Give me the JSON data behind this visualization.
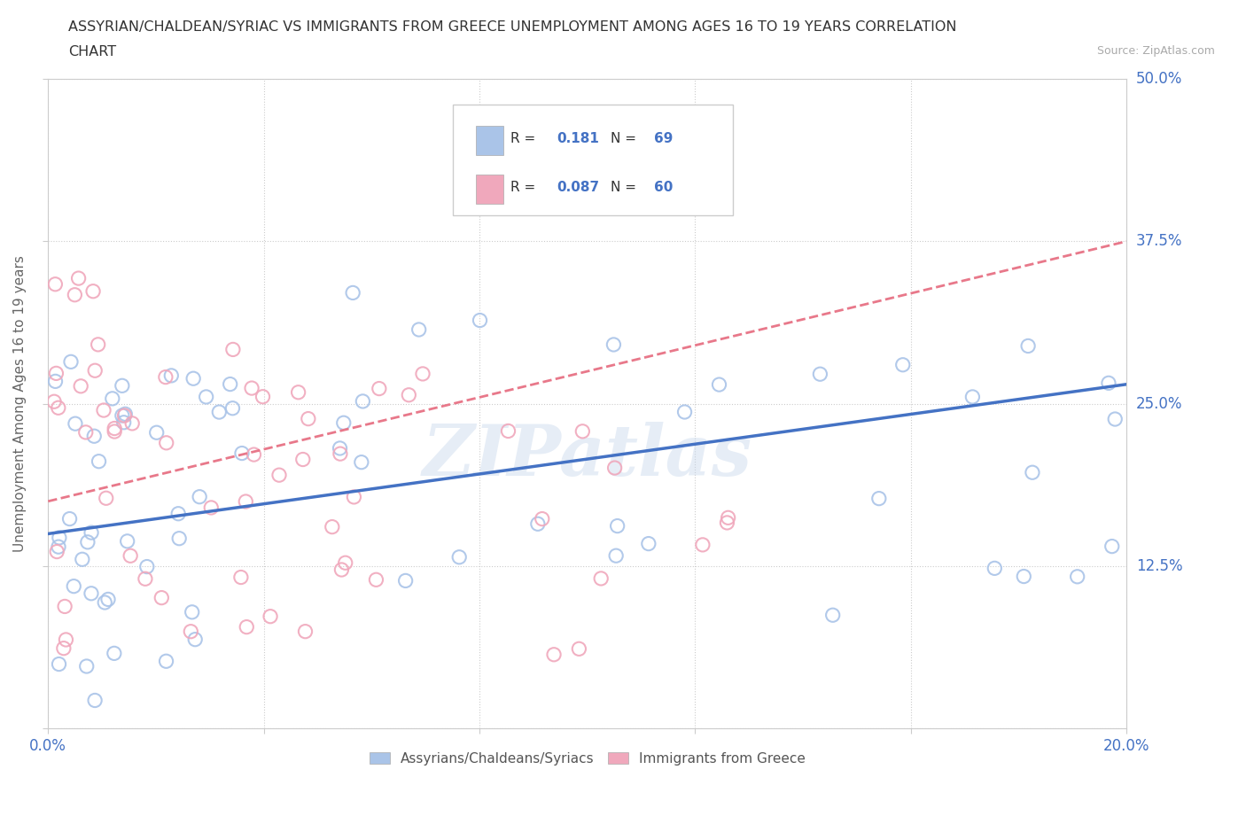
{
  "title_line1": "ASSYRIAN/CHALDEAN/SYRIAC VS IMMIGRANTS FROM GREECE UNEMPLOYMENT AMONG AGES 16 TO 19 YEARS CORRELATION",
  "title_line2": "CHART",
  "source_text": "Source: ZipAtlas.com",
  "ylabel": "Unemployment Among Ages 16 to 19 years",
  "xlim": [
    0.0,
    0.2
  ],
  "ylim": [
    0.0,
    0.5
  ],
  "xticks": [
    0.0,
    0.04,
    0.08,
    0.12,
    0.16,
    0.2
  ],
  "yticks": [
    0.0,
    0.125,
    0.25,
    0.375,
    0.5
  ],
  "blue_R": 0.181,
  "blue_N": 69,
  "pink_R": 0.087,
  "pink_N": 60,
  "blue_color": "#aac4e8",
  "pink_color": "#f0a8bc",
  "blue_line_color": "#4472c4",
  "pink_line_color": "#e8788a",
  "watermark": "ZIPatlas",
  "legend_label_blue": "Assyrians/Chaldeans/Syriacs",
  "legend_label_pink": "Immigrants from Greece",
  "blue_trend_x0": 0.0,
  "blue_trend_x1": 0.2,
  "blue_trend_y0": 0.15,
  "blue_trend_y1": 0.265,
  "pink_trend_x0": 0.0,
  "pink_trend_x1": 0.2,
  "pink_trend_y0": 0.175,
  "pink_trend_y1": 0.375,
  "background_color": "#ffffff",
  "grid_color": "#cccccc",
  "axis_color": "#cccccc",
  "tick_label_color": "#4472c4",
  "title_color": "#333333",
  "source_color": "#aaaaaa"
}
